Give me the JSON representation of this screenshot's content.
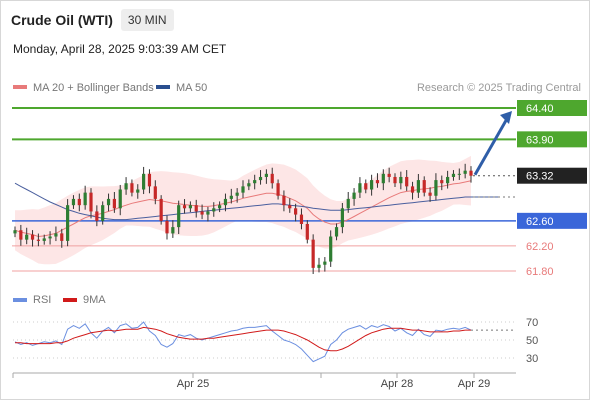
{
  "header": {
    "title": "Crude Oil (WTI)",
    "timeframe": "30 MIN"
  },
  "datetime": "Monday, April 28, 2025 9:03:39 AM CET",
  "legend": {
    "ma20_label": "MA 20 + Bollinger Bands",
    "ma50_label": "MA 50",
    "credit": "Research © 2025 Trading Central"
  },
  "colors": {
    "green": "#4ea72e",
    "blue": "#3a66d9",
    "red": "#e87a7a",
    "band_fill": "#fde6e6",
    "candle_up": "#2e7d32",
    "candle_down": "#c62828",
    "ma50": "#4a5f9e",
    "arrow": "#2f5ea8",
    "rsi": "#6b8fe0",
    "rsi_ma": "#d11a1a",
    "last_bg": "#222222"
  },
  "chart_data": [
    {
      "type": "candlestick",
      "yrange": [
        61.6,
        64.6
      ],
      "x_ticks": [
        "Apr 25",
        "Apr 28",
        "Apr 29"
      ],
      "levels": [
        {
          "value": 64.4,
          "label": "64.40",
          "kind": "resistance"
        },
        {
          "value": 63.9,
          "label": "63.90",
          "kind": "resistance"
        },
        {
          "value": 63.32,
          "label": "63.32",
          "kind": "last"
        },
        {
          "value": 62.6,
          "label": "62.60",
          "kind": "pivot"
        },
        {
          "value": 62.2,
          "label": "62.20",
          "kind": "support"
        },
        {
          "value": 61.8,
          "label": "61.80",
          "kind": "support"
        }
      ],
      "close": [
        62.45,
        62.3,
        62.38,
        62.3,
        62.28,
        62.32,
        62.35,
        62.4,
        62.28,
        62.85,
        62.95,
        62.85,
        63.05,
        62.75,
        62.6,
        62.85,
        62.95,
        62.8,
        63.1,
        63.2,
        63.05,
        63.1,
        63.35,
        63.15,
        62.95,
        62.6,
        62.4,
        62.5,
        62.85,
        62.8,
        62.85,
        62.75,
        62.7,
        62.75,
        62.8,
        62.85,
        62.95,
        63.0,
        63.05,
        63.15,
        63.2,
        63.25,
        63.3,
        63.35,
        63.2,
        63.0,
        62.85,
        62.8,
        62.7,
        62.55,
        62.3,
        61.85,
        61.9,
        61.95,
        62.35,
        62.5,
        62.8,
        62.95,
        63.05,
        63.2,
        63.1,
        63.25,
        63.2,
        63.35,
        63.3,
        63.2,
        63.3,
        63.15,
        63.05,
        63.25,
        63.05,
        63.0,
        63.25,
        63.2,
        63.3,
        63.35,
        63.35,
        63.4,
        63.32
      ],
      "ma20": [
        62.45,
        62.42,
        62.4,
        62.38,
        62.35,
        62.36,
        62.38,
        62.4,
        62.45,
        62.5,
        62.55,
        62.6,
        62.65,
        62.68,
        62.7,
        62.72,
        62.75,
        62.78,
        62.82,
        62.85,
        62.88,
        62.9,
        62.92,
        62.94,
        62.93,
        62.92,
        62.9,
        62.88,
        62.87,
        62.86,
        62.85,
        62.84,
        62.83,
        62.83,
        62.84,
        62.86,
        62.88,
        62.9,
        62.93,
        62.96,
        62.98,
        63.0,
        63.02,
        63.04,
        63.04,
        63.02,
        63.0,
        62.96,
        62.92,
        62.86,
        62.8,
        62.7,
        62.63,
        62.58,
        62.55,
        62.55,
        62.58,
        62.62,
        62.67,
        62.72,
        62.77,
        62.82,
        62.87,
        62.92,
        62.97,
        63.01,
        63.05,
        63.07,
        63.08,
        63.1,
        63.11,
        63.12,
        63.14,
        63.15,
        63.17,
        63.19,
        63.2,
        63.22,
        63.24
      ],
      "ma50": [
        63.2,
        63.15,
        63.1,
        63.05,
        63.0,
        62.95,
        62.9,
        62.86,
        62.82,
        62.78,
        62.75,
        62.72,
        62.7,
        62.68,
        62.66,
        62.64,
        62.63,
        62.62,
        62.62,
        62.62,
        62.63,
        62.64,
        62.65,
        62.66,
        62.67,
        62.68,
        62.69,
        62.7,
        62.71,
        62.72,
        62.73,
        62.74,
        62.75,
        62.76,
        62.77,
        62.78,
        62.79,
        62.8,
        62.81,
        62.82,
        62.83,
        62.84,
        62.85,
        62.86,
        62.87,
        62.87,
        62.86,
        62.85,
        62.84,
        62.83,
        62.82,
        62.8,
        62.79,
        62.78,
        62.77,
        62.77,
        62.77,
        62.78,
        62.79,
        62.8,
        62.81,
        62.82,
        62.83,
        62.84,
        62.85,
        62.86,
        62.87,
        62.88,
        62.89,
        62.9,
        62.91,
        62.92,
        62.93,
        62.94,
        62.95,
        62.96,
        62.97,
        62.98,
        62.98
      ]
    },
    {
      "type": "line",
      "legend": [
        "RSI",
        "9MA"
      ],
      "yticks": [
        30,
        50,
        70
      ],
      "yrange": [
        20,
        80
      ],
      "series": [
        {
          "name": "RSI",
          "values": [
            48,
            45,
            47,
            44,
            46,
            48,
            47,
            49,
            45,
            62,
            66,
            63,
            68,
            58,
            52,
            60,
            64,
            58,
            66,
            68,
            63,
            64,
            70,
            60,
            55,
            45,
            42,
            46,
            56,
            54,
            56,
            52,
            50,
            52,
            54,
            56,
            58,
            60,
            61,
            63,
            64,
            64,
            65,
            66,
            60,
            55,
            50,
            48,
            45,
            40,
            33,
            26,
            29,
            32,
            45,
            50,
            58,
            62,
            64,
            66,
            62,
            66,
            64,
            67,
            65,
            60,
            63,
            58,
            55,
            62,
            56,
            54,
            61,
            60,
            62,
            63,
            62,
            64,
            61
          ]
        },
        {
          "name": "9MA",
          "values": [
            47,
            47,
            46,
            46,
            46,
            46,
            46,
            47,
            47,
            49,
            52,
            54,
            56,
            58,
            59,
            60,
            61,
            60,
            61,
            62,
            62,
            62,
            64,
            63,
            62,
            60,
            57,
            55,
            53,
            52,
            51,
            51,
            51,
            52,
            52,
            53,
            54,
            55,
            56,
            57,
            58,
            59,
            60,
            61,
            61,
            61,
            60,
            58,
            56,
            53,
            50,
            46,
            42,
            39,
            38,
            38,
            40,
            43,
            47,
            51,
            55,
            58,
            60,
            62,
            63,
            63,
            63,
            62,
            61,
            61,
            60,
            59,
            59,
            59,
            59,
            60,
            60,
            61,
            61
          ]
        }
      ]
    }
  ]
}
